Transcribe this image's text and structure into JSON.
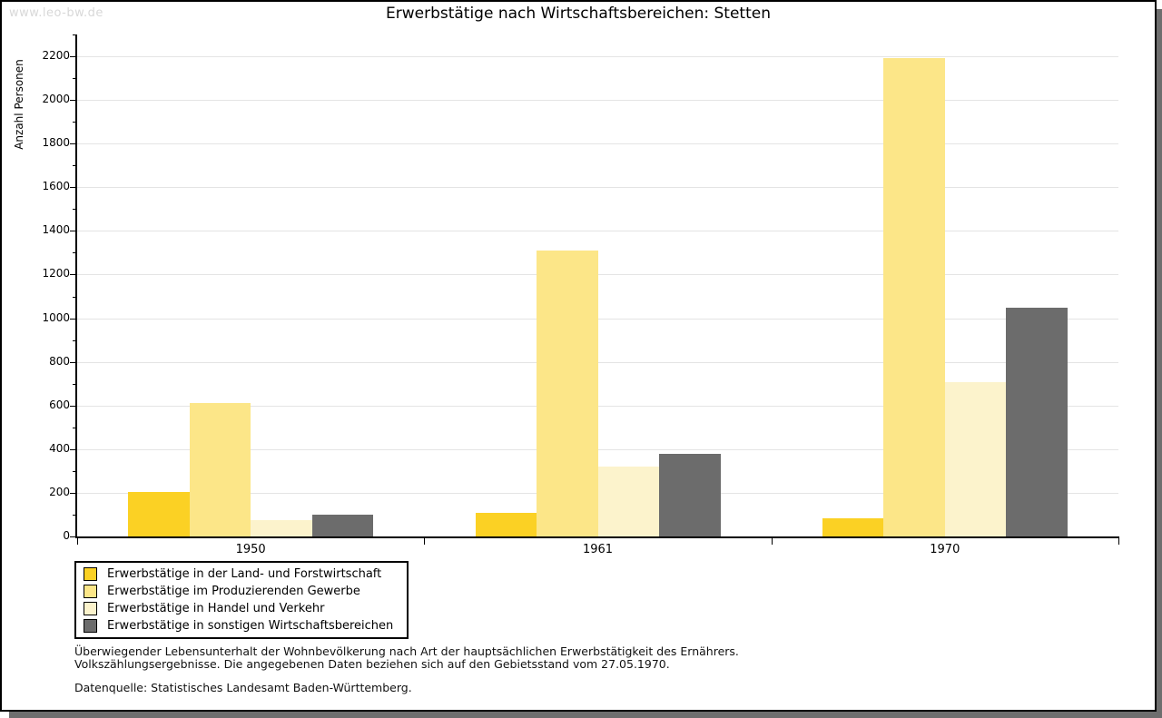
{
  "watermark": "www.leo-bw.de",
  "chart_data": {
    "type": "bar",
    "title": "Erwerbstätige nach Wirtschaftsbereichen: Stetten",
    "ylabel": "Anzahl Personen",
    "xlabel": "",
    "categories": [
      "1950",
      "1961",
      "1970"
    ],
    "series": [
      {
        "name": "Erwerbstätige in der Land- und Forstwirtschaft",
        "color": "#FBD124",
        "values": [
          205,
          110,
          85
        ]
      },
      {
        "name": "Erwerbstätige im Produzierenden Gewerbe",
        "color": "#FCE688",
        "values": [
          610,
          1310,
          2190
        ]
      },
      {
        "name": "Erwerbstätige in Handel und Verkehr",
        "color": "#FCF3CC",
        "values": [
          75,
          320,
          705
        ]
      },
      {
        "name": "Erwerbstätige in sonstigen Wirtschaftsbereichen",
        "color": "#6C6C6C",
        "values": [
          100,
          380,
          1050
        ]
      }
    ],
    "ylim": [
      0,
      2200
    ],
    "ytick_major": 200,
    "ytick_minor": 100,
    "grid": true,
    "legend_position": "bottom-left"
  },
  "footer": {
    "line1": "Überwiegender Lebensunterhalt der Wohnbevölkerung nach Art der hauptsächlichen Erwerbstätigkeit des Ernährers.",
    "line2": "Volkszählungsergebnisse. Die angegebenen Daten beziehen sich auf den Gebietsstand vom 27.05.1970.",
    "source": "Datenquelle: Statistisches Landesamt Baden-Württemberg."
  },
  "colors": {
    "shadow": "#6E6E6E",
    "gridline": "#E4E4E4",
    "watermark": "#D8D8D8",
    "axis": "#000000"
  }
}
